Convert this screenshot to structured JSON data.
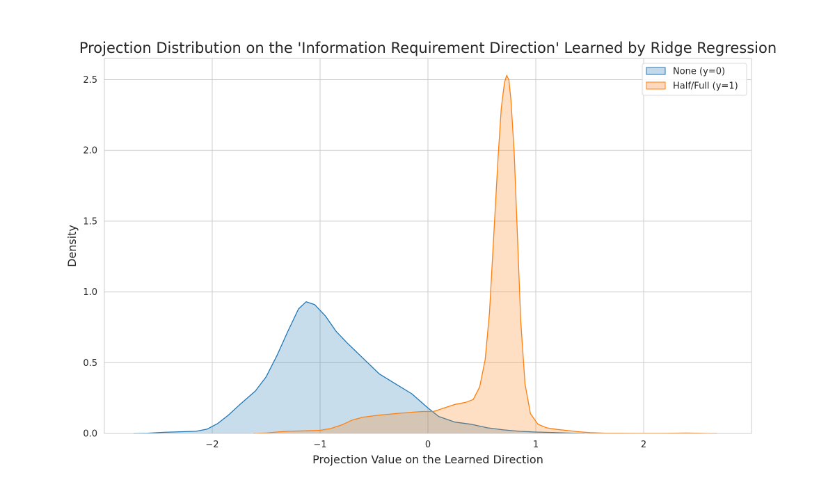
{
  "chart_data": {
    "type": "area",
    "title": "Projection Distribution on the 'Information Requirement Direction' Learned by Ridge Regression",
    "xlabel": "Projection Value on the Learned Direction",
    "ylabel": "Density",
    "xlim": [
      -3.0,
      3.0
    ],
    "ylim": [
      0,
      2.65
    ],
    "xticks": [
      -2,
      -1,
      0,
      1,
      2
    ],
    "xtick_labels": [
      "−2",
      "−1",
      "0",
      "1",
      "2"
    ],
    "yticks": [
      0.0,
      0.5,
      1.0,
      1.5,
      2.0,
      2.5
    ],
    "ytick_labels": [
      "0.0",
      "0.5",
      "1.0",
      "1.5",
      "2.0",
      "2.5"
    ],
    "grid": true,
    "legend_position": "top-right",
    "series": [
      {
        "name": "None (y=0)",
        "color": "#1f77b4",
        "fill": "#c5d9ec",
        "points": [
          [
            -2.73,
            0.0
          ],
          [
            -2.6,
            0.002
          ],
          [
            -2.45,
            0.008
          ],
          [
            -2.3,
            0.012
          ],
          [
            -2.15,
            0.015
          ],
          [
            -2.05,
            0.03
          ],
          [
            -1.95,
            0.07
          ],
          [
            -1.85,
            0.13
          ],
          [
            -1.75,
            0.2
          ],
          [
            -1.6,
            0.3
          ],
          [
            -1.5,
            0.4
          ],
          [
            -1.4,
            0.55
          ],
          [
            -1.3,
            0.72
          ],
          [
            -1.2,
            0.88
          ],
          [
            -1.13,
            0.93
          ],
          [
            -1.05,
            0.91
          ],
          [
            -0.95,
            0.83
          ],
          [
            -0.85,
            0.72
          ],
          [
            -0.75,
            0.64
          ],
          [
            -0.6,
            0.53
          ],
          [
            -0.45,
            0.42
          ],
          [
            -0.3,
            0.35
          ],
          [
            -0.15,
            0.28
          ],
          [
            0.0,
            0.18
          ],
          [
            0.1,
            0.12
          ],
          [
            0.25,
            0.08
          ],
          [
            0.4,
            0.065
          ],
          [
            0.55,
            0.04
          ],
          [
            0.7,
            0.025
          ],
          [
            0.85,
            0.015
          ],
          [
            1.0,
            0.01
          ],
          [
            1.15,
            0.007
          ],
          [
            1.3,
            0.003
          ],
          [
            1.45,
            0.0
          ]
        ]
      },
      {
        "name": "Half/Full (y=1)",
        "color": "#ff7f0e",
        "fill": "#fdd8bd",
        "points": [
          [
            -1.62,
            0.0
          ],
          [
            -1.5,
            0.003
          ],
          [
            -1.4,
            0.01
          ],
          [
            -1.3,
            0.015
          ],
          [
            -1.15,
            0.018
          ],
          [
            -1.0,
            0.022
          ],
          [
            -0.9,
            0.035
          ],
          [
            -0.8,
            0.06
          ],
          [
            -0.7,
            0.095
          ],
          [
            -0.6,
            0.115
          ],
          [
            -0.45,
            0.13
          ],
          [
            -0.3,
            0.14
          ],
          [
            -0.15,
            0.15
          ],
          [
            -0.05,
            0.155
          ],
          [
            0.05,
            0.155
          ],
          [
            0.15,
            0.18
          ],
          [
            0.25,
            0.205
          ],
          [
            0.35,
            0.22
          ],
          [
            0.42,
            0.24
          ],
          [
            0.48,
            0.33
          ],
          [
            0.53,
            0.52
          ],
          [
            0.57,
            0.85
          ],
          [
            0.61,
            1.4
          ],
          [
            0.65,
            1.95
          ],
          [
            0.68,
            2.3
          ],
          [
            0.71,
            2.48
          ],
          [
            0.73,
            2.53
          ],
          [
            0.75,
            2.5
          ],
          [
            0.77,
            2.35
          ],
          [
            0.8,
            1.98
          ],
          [
            0.83,
            1.4
          ],
          [
            0.86,
            0.8
          ],
          [
            0.9,
            0.35
          ],
          [
            0.95,
            0.14
          ],
          [
            1.02,
            0.065
          ],
          [
            1.1,
            0.04
          ],
          [
            1.2,
            0.028
          ],
          [
            1.3,
            0.02
          ],
          [
            1.4,
            0.012
          ],
          [
            1.5,
            0.006
          ],
          [
            1.65,
            0.002
          ],
          [
            1.9,
            0.001
          ],
          [
            2.2,
            0.001
          ],
          [
            2.4,
            0.003
          ],
          [
            2.55,
            0.001
          ],
          [
            2.68,
            0.0
          ]
        ]
      }
    ]
  }
}
